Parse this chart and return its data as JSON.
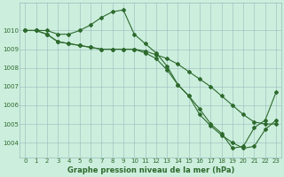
{
  "title": "Graphe pression niveau de la mer (hPa)",
  "bg_color": "#cceedd",
  "grid_color": "#99bbbb",
  "line_color": "#2d6a2d",
  "marker": "D",
  "markersize": 2.0,
  "linewidth": 0.8,
  "xlim": [
    -0.5,
    23.5
  ],
  "ylim": [
    1003.2,
    1011.5
  ],
  "yticks": [
    1004,
    1005,
    1006,
    1007,
    1008,
    1009,
    1010
  ],
  "xticks": [
    0,
    1,
    2,
    3,
    4,
    5,
    6,
    7,
    8,
    9,
    10,
    11,
    12,
    13,
    14,
    15,
    16,
    17,
    18,
    19,
    20,
    21,
    22,
    23
  ],
  "series": [
    [
      1010.0,
      1010.0,
      1010.0,
      1009.8,
      1009.8,
      1010.0,
      1010.3,
      1010.7,
      1011.0,
      1011.1,
      1009.8,
      1009.3,
      1008.8,
      1008.1,
      1007.1,
      1006.5,
      1005.8,
      1005.0,
      1004.5,
      1003.7,
      1003.8,
      1004.8,
      1005.2,
      1006.7
    ],
    [
      1010.0,
      1010.0,
      1009.8,
      1009.4,
      1009.3,
      1009.2,
      1009.1,
      1009.0,
      1009.0,
      1009.0,
      1009.0,
      1008.9,
      1008.7,
      1008.5,
      1008.2,
      1007.8,
      1007.4,
      1007.0,
      1006.5,
      1006.0,
      1005.5,
      1005.1,
      1005.0,
      1005.0
    ],
    [
      1010.0,
      1010.0,
      1009.8,
      1009.4,
      1009.3,
      1009.2,
      1009.1,
      1009.0,
      1009.0,
      1009.0,
      1009.0,
      1008.8,
      1008.5,
      1007.9,
      1007.1,
      1006.5,
      1005.5,
      1004.9,
      1004.4,
      1004.0,
      1003.7,
      1003.8,
      1004.7,
      1005.2
    ]
  ],
  "tick_fontsize": 5.0,
  "xlabel_fontsize": 6.0
}
